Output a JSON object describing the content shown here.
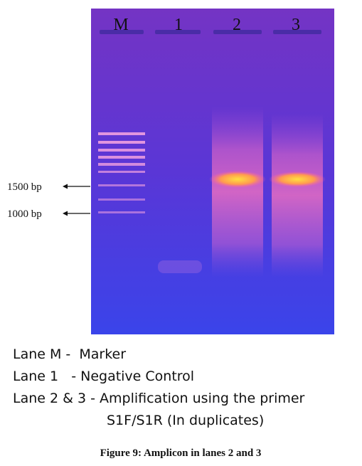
{
  "figure": {
    "lanes": [
      "M",
      "1",
      "2",
      "3"
    ],
    "size_markers": [
      "1500 bp",
      "1000 bp"
    ],
    "legend": [
      "Lane M -  Marker",
      "Lane 1   - Negative Control",
      "Lane 2 & 3 - Amplification using the primer",
      "S1F/S1R (In duplicates)"
    ],
    "caption": "Figure 9: Amplicon in lanes 2 and 3"
  }
}
